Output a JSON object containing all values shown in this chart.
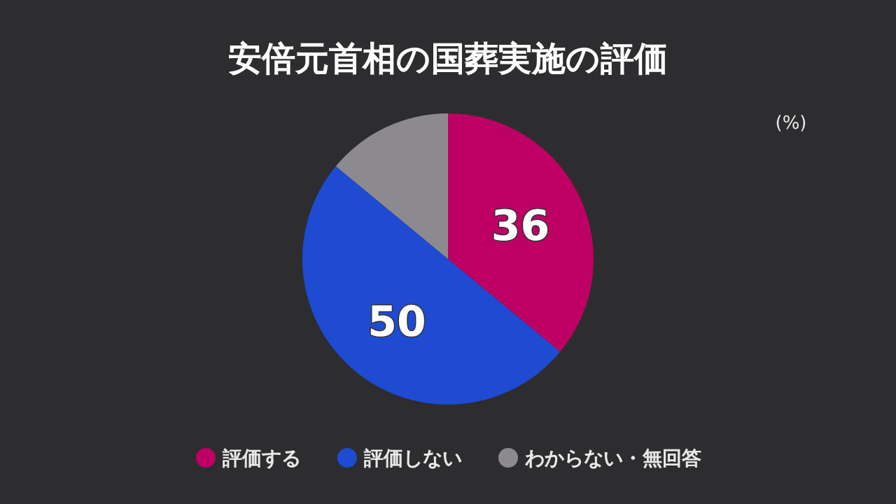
{
  "chart_data": {
    "type": "pie",
    "title": "安倍元首相の国葬実施の評価",
    "categories": [
      "評価する",
      "評価しない",
      "わからない・無回答"
    ],
    "values": [
      36,
      50,
      14
    ],
    "colors": [
      "#be0064",
      "#1e4bd2",
      "#8c8a8e"
    ],
    "value_labels": [
      "36",
      "50",
      null
    ],
    "annotations": [
      "(%)"
    ],
    "legend": "bottom"
  }
}
